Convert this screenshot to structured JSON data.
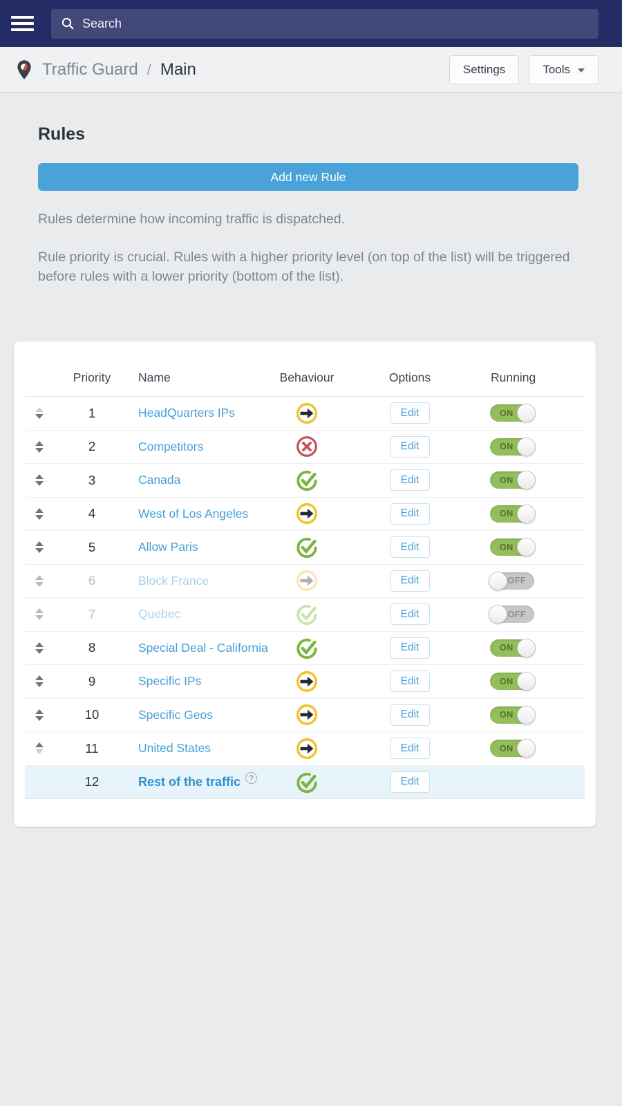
{
  "navbar": {
    "search_placeholder": "Search"
  },
  "breadcrumb": {
    "app": "Traffic Guard",
    "separator": "/",
    "page": "Main",
    "settings_label": "Settings",
    "tools_label": "Tools"
  },
  "rules_section": {
    "heading": "Rules",
    "add_button_label": "Add new Rule",
    "description_1": "Rules determine how incoming traffic is dispatched.",
    "description_2": "Rule priority is crucial. Rules with a higher priority level (on top of the list) will be triggered before rules with a lower priority (bottom of the list)."
  },
  "table": {
    "headers": {
      "priority": "Priority",
      "name": "Name",
      "behaviour": "Behaviour",
      "options": "Options",
      "running": "Running"
    },
    "edit_label": "Edit",
    "toggle_on_label": "ON",
    "toggle_off_label": "OFF",
    "help_symbol": "?",
    "rows": [
      {
        "priority": "1",
        "name": "HeadQuarters IPs",
        "behaviour": "forward",
        "running": "on",
        "state": "normal",
        "move_up": false,
        "move_down": true,
        "draggable": true
      },
      {
        "priority": "2",
        "name": "Competitors",
        "behaviour": "block",
        "running": "on",
        "state": "normal",
        "move_up": true,
        "move_down": true,
        "draggable": true
      },
      {
        "priority": "3",
        "name": "Canada",
        "behaviour": "allow",
        "running": "on",
        "state": "normal",
        "move_up": true,
        "move_down": true,
        "draggable": true
      },
      {
        "priority": "4",
        "name": "West of Los Angeles",
        "behaviour": "forward",
        "running": "on",
        "state": "normal",
        "move_up": true,
        "move_down": true,
        "draggable": true
      },
      {
        "priority": "5",
        "name": "Allow Paris",
        "behaviour": "allow",
        "running": "on",
        "state": "normal",
        "move_up": true,
        "move_down": true,
        "draggable": true
      },
      {
        "priority": "6",
        "name": "Block France",
        "behaviour": "forward",
        "running": "off",
        "state": "disabled",
        "move_up": true,
        "move_down": true,
        "draggable": true
      },
      {
        "priority": "7",
        "name": "Quebec",
        "behaviour": "allow",
        "running": "off",
        "state": "disabled",
        "move_up": true,
        "move_down": true,
        "draggable": true
      },
      {
        "priority": "8",
        "name": "Special Deal - California",
        "behaviour": "allow",
        "running": "on",
        "state": "normal",
        "move_up": true,
        "move_down": true,
        "draggable": true
      },
      {
        "priority": "9",
        "name": "Specific IPs",
        "behaviour": "forward",
        "running": "on",
        "state": "normal",
        "move_up": true,
        "move_down": true,
        "draggable": true
      },
      {
        "priority": "10",
        "name": "Specific Geos",
        "behaviour": "forward",
        "running": "on",
        "state": "normal",
        "move_up": true,
        "move_down": true,
        "draggable": true
      },
      {
        "priority": "11",
        "name": "United States",
        "behaviour": "forward",
        "running": "on",
        "state": "normal",
        "move_up": true,
        "move_down": false,
        "draggable": true
      },
      {
        "priority": "12",
        "name": "Rest of the traffic",
        "behaviour": "allow",
        "running": "none",
        "state": "highlighted",
        "move_up": false,
        "move_down": false,
        "draggable": false,
        "help": true
      }
    ]
  },
  "colors": {
    "navbar_navy": "#252b64",
    "accent_blue": "#4aa3d8",
    "link_blue": "#479fd9",
    "toggle_on_green": "#93be5b",
    "icon_yellow": "#f2c431",
    "icon_red": "#c5505b",
    "icon_green": "#7cb53f",
    "highlight_row": "#e8f4fb"
  }
}
